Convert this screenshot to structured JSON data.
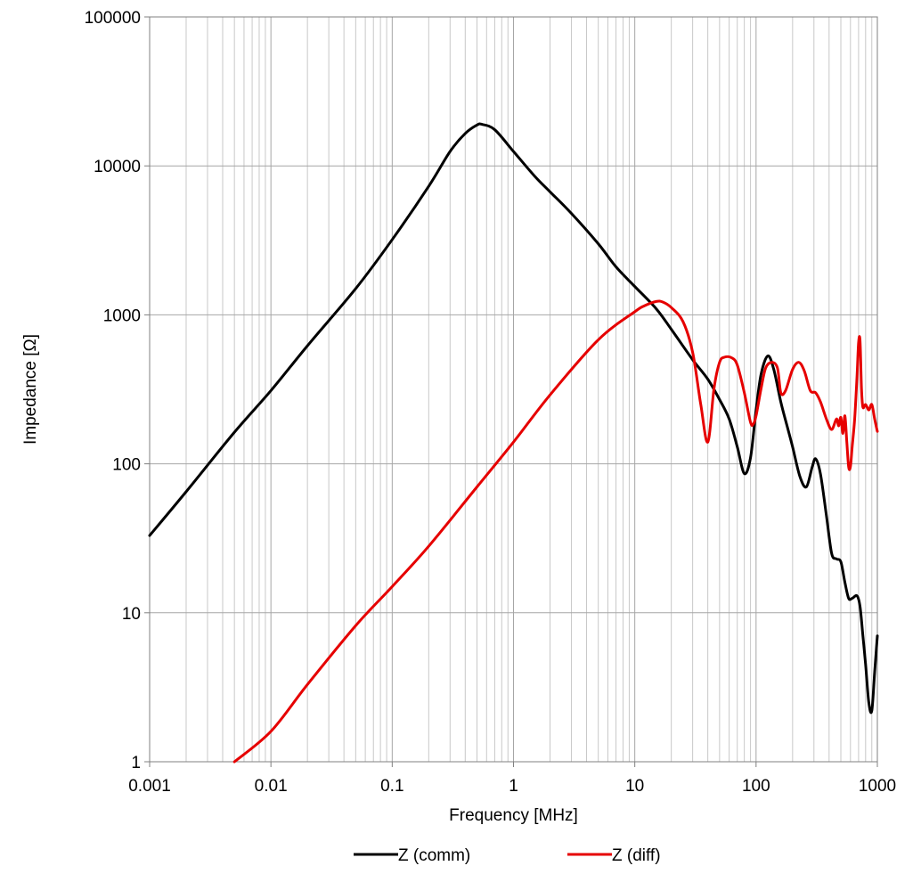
{
  "chart_data": {
    "type": "line",
    "title": "",
    "xlabel": "Frequency [MHz]",
    "ylabel": "Impedance [Ω]",
    "x_scale": "log",
    "y_scale": "log",
    "xlim": [
      0.001,
      1000
    ],
    "ylim": [
      1,
      100000
    ],
    "x_ticks": [
      "0.001",
      "0.01",
      "0.1",
      "1",
      "10",
      "100",
      "1000"
    ],
    "y_ticks": [
      "1",
      "10",
      "100",
      "1000",
      "10000",
      "100000"
    ],
    "grid": true,
    "legend_position": "bottom",
    "series": [
      {
        "name": "Z (comm)",
        "color": "#000000",
        "x": [
          0.001,
          0.002,
          0.005,
          0.01,
          0.02,
          0.05,
          0.1,
          0.2,
          0.3,
          0.4,
          0.5,
          0.55,
          0.7,
          1,
          1.5,
          2,
          3,
          5,
          7,
          10,
          15,
          20,
          30,
          40,
          50,
          60,
          70,
          80,
          90,
          100,
          110,
          125,
          140,
          160,
          180,
          200,
          230,
          260,
          290,
          310,
          340,
          380,
          420,
          460,
          500,
          540,
          580,
          620,
          680,
          720,
          760,
          800,
          850,
          900,
          950,
          1000
        ],
        "y": [
          33,
          65,
          163,
          310,
          620,
          1500,
          3200,
          7300,
          12500,
          16500,
          18800,
          19000,
          17500,
          12500,
          8500,
          6700,
          4800,
          3000,
          2100,
          1550,
          1100,
          800,
          500,
          370,
          270,
          200,
          130,
          86,
          110,
          230,
          400,
          530,
          430,
          260,
          180,
          130,
          82,
          70,
          95,
          108,
          85,
          45,
          25,
          23,
          22,
          16,
          12.5,
          12.5,
          13,
          11,
          7,
          4.5,
          2.5,
          2.2,
          4,
          7
        ]
      },
      {
        "name": "Z (diff)",
        "color": "#e60000",
        "x": [
          0.005,
          0.01,
          0.02,
          0.05,
          0.1,
          0.2,
          0.5,
          1,
          2,
          5,
          10,
          12,
          15,
          17,
          20,
          25,
          30,
          35,
          40,
          45,
          50,
          55,
          63,
          70,
          80,
          90,
          95,
          100,
          110,
          120,
          135,
          150,
          160,
          175,
          200,
          225,
          250,
          280,
          310,
          340,
          380,
          420,
          460,
          480,
          500,
          520,
          540,
          560,
          580,
          600,
          620,
          650,
          680,
          700,
          720,
          740,
          760,
          800,
          850,
          900,
          950,
          1000
        ],
        "y": [
          1,
          1.6,
          3.3,
          8.2,
          15,
          28,
          70,
          140,
          290,
          680,
          1050,
          1150,
          1230,
          1220,
          1120,
          900,
          560,
          250,
          140,
          320,
          480,
          520,
          515,
          460,
          300,
          190,
          185,
          210,
          320,
          440,
          480,
          440,
          300,
          310,
          430,
          480,
          420,
          310,
          300,
          260,
          200,
          170,
          200,
          180,
          205,
          160,
          210,
          140,
          95,
          96,
          130,
          200,
          390,
          650,
          670,
          320,
          240,
          250,
          230,
          250,
          200,
          165
        ]
      }
    ]
  }
}
